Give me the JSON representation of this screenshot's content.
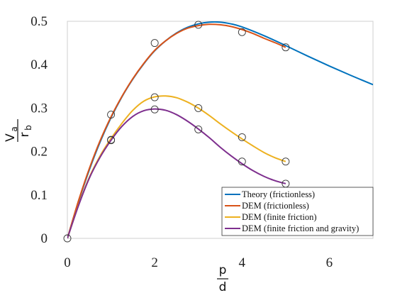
{
  "chart_data": {
    "type": "line",
    "xlim": [
      0,
      7
    ],
    "ylim": [
      0,
      0.5
    ],
    "xticks": [
      0,
      2,
      4,
      6
    ],
    "yticks": [
      0,
      0.1,
      0.2,
      0.3,
      0.4,
      0.5
    ],
    "xtick_labels": [
      "0",
      "2",
      "4",
      "6"
    ],
    "ytick_labels": [
      "0",
      "0.1",
      "0.2",
      "0.3",
      "0.4",
      "0.5"
    ],
    "xlabel": {
      "numerator": "p",
      "denominator": "d"
    },
    "ylabel": {
      "numerator": "V",
      "numerator_sub": "a",
      "denominator": "r",
      "denominator_sub": "b"
    },
    "legend_position": "bottom-right",
    "grid": false,
    "series": [
      {
        "name": "Theory (frictionless)",
        "color": "#0072BD",
        "x": [
          0,
          0.25,
          0.5,
          0.75,
          1,
          1.25,
          1.5,
          1.75,
          2,
          2.25,
          2.5,
          2.75,
          3,
          3.25,
          3.5,
          3.75,
          4,
          4.5,
          5,
          5.5,
          6,
          6.5,
          7
        ],
        "y": [
          0,
          0.083,
          0.157,
          0.222,
          0.278,
          0.326,
          0.367,
          0.402,
          0.432,
          0.455,
          0.473,
          0.486,
          0.494,
          0.498,
          0.498,
          0.494,
          0.487,
          0.467,
          0.444,
          0.42,
          0.397,
          0.375,
          0.354
        ]
      },
      {
        "name": "DEM (frictionless)",
        "color": "#D95319",
        "x": [
          0,
          0.25,
          0.5,
          0.75,
          1,
          1.25,
          1.5,
          1.75,
          2,
          2.25,
          2.5,
          2.75,
          3,
          3.25,
          3.5,
          3.75,
          4,
          4.25,
          4.5,
          4.75,
          5
        ],
        "y": [
          0,
          0.085,
          0.16,
          0.225,
          0.28,
          0.327,
          0.368,
          0.403,
          0.433,
          0.455,
          0.472,
          0.484,
          0.49,
          0.493,
          0.492,
          0.488,
          0.481,
          0.472,
          0.461,
          0.451,
          0.44
        ],
        "markers_x": [
          0,
          1,
          2,
          3,
          4,
          5
        ],
        "markers_y": [
          0,
          0.285,
          0.45,
          0.492,
          0.475,
          0.44
        ]
      },
      {
        "name": "DEM (finite friction)",
        "color": "#EDB120",
        "x": [
          0,
          0.25,
          0.5,
          0.75,
          1,
          1.25,
          1.5,
          1.75,
          2,
          2.25,
          2.5,
          2.75,
          3,
          3.25,
          3.5,
          3.75,
          4,
          4.25,
          4.5,
          4.75,
          5
        ],
        "y": [
          0,
          0.075,
          0.14,
          0.19,
          0.23,
          0.265,
          0.295,
          0.316,
          0.326,
          0.328,
          0.324,
          0.314,
          0.3,
          0.283,
          0.264,
          0.246,
          0.229,
          0.213,
          0.198,
          0.186,
          0.177
        ],
        "markers_x": [
          1,
          2,
          3,
          4,
          5
        ],
        "markers_y": [
          0.227,
          0.325,
          0.3,
          0.233,
          0.177
        ]
      },
      {
        "name": "DEM (finite friction and gravity)",
        "color": "#7E2F8E",
        "x": [
          0,
          0.25,
          0.5,
          0.75,
          1,
          1.25,
          1.5,
          1.75,
          2,
          2.25,
          2.5,
          2.75,
          3,
          3.25,
          3.5,
          3.75,
          4,
          4.25,
          4.5,
          4.75,
          5
        ],
        "y": [
          0,
          0.074,
          0.138,
          0.187,
          0.226,
          0.258,
          0.281,
          0.294,
          0.298,
          0.295,
          0.285,
          0.27,
          0.252,
          0.232,
          0.21,
          0.19,
          0.172,
          0.156,
          0.143,
          0.133,
          0.126
        ],
        "markers_x": [
          1,
          2,
          3,
          4,
          5
        ],
        "markers_y": [
          0.226,
          0.297,
          0.251,
          0.177,
          0.126
        ]
      }
    ]
  }
}
